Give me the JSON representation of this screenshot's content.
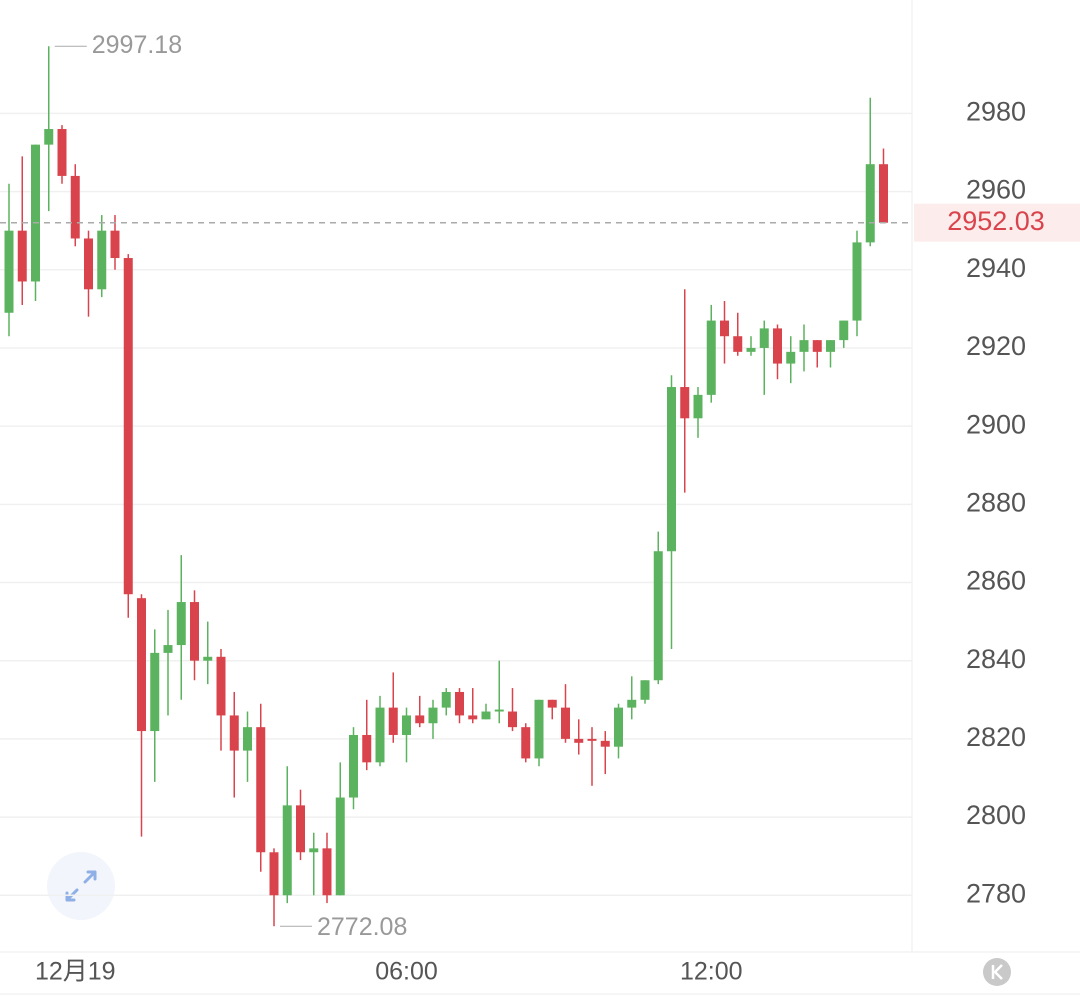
{
  "chart_data": {
    "type": "candlestick",
    "categories": [
      null,
      null,
      null,
      null,
      null,
      "12月19",
      null,
      null,
      null,
      null,
      null,
      null,
      null,
      null,
      null,
      null,
      null,
      null,
      null,
      null,
      null,
      null,
      null,
      null,
      null,
      null,
      null,
      null,
      null,
      null,
      "06:00",
      null,
      null,
      null,
      null,
      null,
      null,
      null,
      null,
      null,
      null,
      null,
      null,
      null,
      null,
      null,
      null,
      null,
      null,
      null,
      null,
      null,
      null,
      "12:00",
      null,
      null,
      null,
      null,
      null,
      null,
      null,
      null,
      null,
      null,
      null,
      null,
      null
    ],
    "open": [
      2929,
      2950,
      2937,
      2972,
      2976,
      2964,
      2948,
      2935,
      2950,
      2943,
      2856,
      2822,
      2842,
      2844,
      2855,
      2840,
      2841,
      2826,
      2817,
      2823,
      2791,
      2780,
      2803,
      2791,
      2792,
      2780,
      2805,
      2821,
      2814,
      2828,
      2821,
      2826,
      2824,
      2828,
      2832,
      2826,
      2825,
      2827,
      2827,
      2823,
      2815,
      2830,
      2828,
      2820,
      2820,
      2819.5,
      2818,
      2828,
      2830,
      2835,
      2868,
      2910,
      2902,
      2908,
      2927,
      2923,
      2919,
      2920,
      2925,
      2916,
      2919,
      2922,
      2919,
      2922,
      2927,
      2947,
      2967
    ],
    "high": [
      2962,
      2969,
      2972,
      2997.18,
      2977,
      2967,
      2950,
      2954,
      2954,
      2944,
      2857,
      2848,
      2853,
      2867,
      2858,
      2850,
      2843,
      2832,
      2827,
      2829,
      2792,
      2813,
      2807,
      2796,
      2796,
      2814,
      2823,
      2830,
      2831,
      2837,
      2828,
      2831,
      2830,
      2833,
      2833,
      2833,
      2829,
      2840,
      2833,
      2824,
      2830,
      2830,
      2834,
      2825,
      2823,
      2822,
      2829,
      2836,
      2835,
      2873,
      2913,
      2935,
      2910,
      2931,
      2932,
      2929,
      2923,
      2927,
      2926,
      2923,
      2926,
      2922,
      2922,
      2927,
      2950,
      2984,
      2971
    ],
    "low": [
      2923,
      2931,
      2932,
      2955,
      2962,
      2946,
      2928,
      2933,
      2940,
      2851,
      2795,
      2809,
      2826,
      2830,
      2835,
      2834,
      2817,
      2805,
      2809,
      2786,
      2772.08,
      2778,
      2789,
      2780,
      2778,
      2780,
      2802,
      2812,
      2813,
      2819,
      2814,
      2823,
      2820,
      2826,
      2824,
      2824,
      2825,
      2824,
      2822,
      2814,
      2813,
      2825,
      2819,
      2816,
      2808,
      2811,
      2815,
      2825,
      2829,
      2834,
      2843,
      2883,
      2897,
      2906,
      2916,
      2918,
      2918,
      2908,
      2912,
      2911,
      2914,
      2915,
      2915,
      2920,
      2923,
      2946,
      2952
    ],
    "close": [
      2950,
      2937,
      2972,
      2976,
      2964,
      2948,
      2935,
      2950,
      2943,
      2857,
      2822,
      2842,
      2844,
      2855,
      2840,
      2841,
      2826,
      2817,
      2823,
      2791,
      2780,
      2803,
      2791,
      2792,
      2780,
      2805,
      2821,
      2814,
      2828,
      2821,
      2826,
      2824,
      2828,
      2832,
      2826,
      2825,
      2827,
      2827.5,
      2823,
      2815,
      2830,
      2828,
      2820,
      2819,
      2819.5,
      2818,
      2828,
      2830,
      2835,
      2868,
      2910,
      2902,
      2908,
      2927,
      2923,
      2919,
      2920,
      2925,
      2916,
      2919,
      2922,
      2919,
      2922,
      2927,
      2947,
      2967,
      2952.03
    ],
    "up_color": "#5cb35f",
    "down_color": "#d9444c",
    "ylim": [
      2766,
      3009
    ],
    "yticks": [
      2780,
      2800,
      2820,
      2840,
      2860,
      2880,
      2900,
      2920,
      2940,
      2960,
      2980
    ],
    "grid": true,
    "high_annotation": 2997.18,
    "low_annotation": 2772.08,
    "last_price": 2952.03
  }
}
